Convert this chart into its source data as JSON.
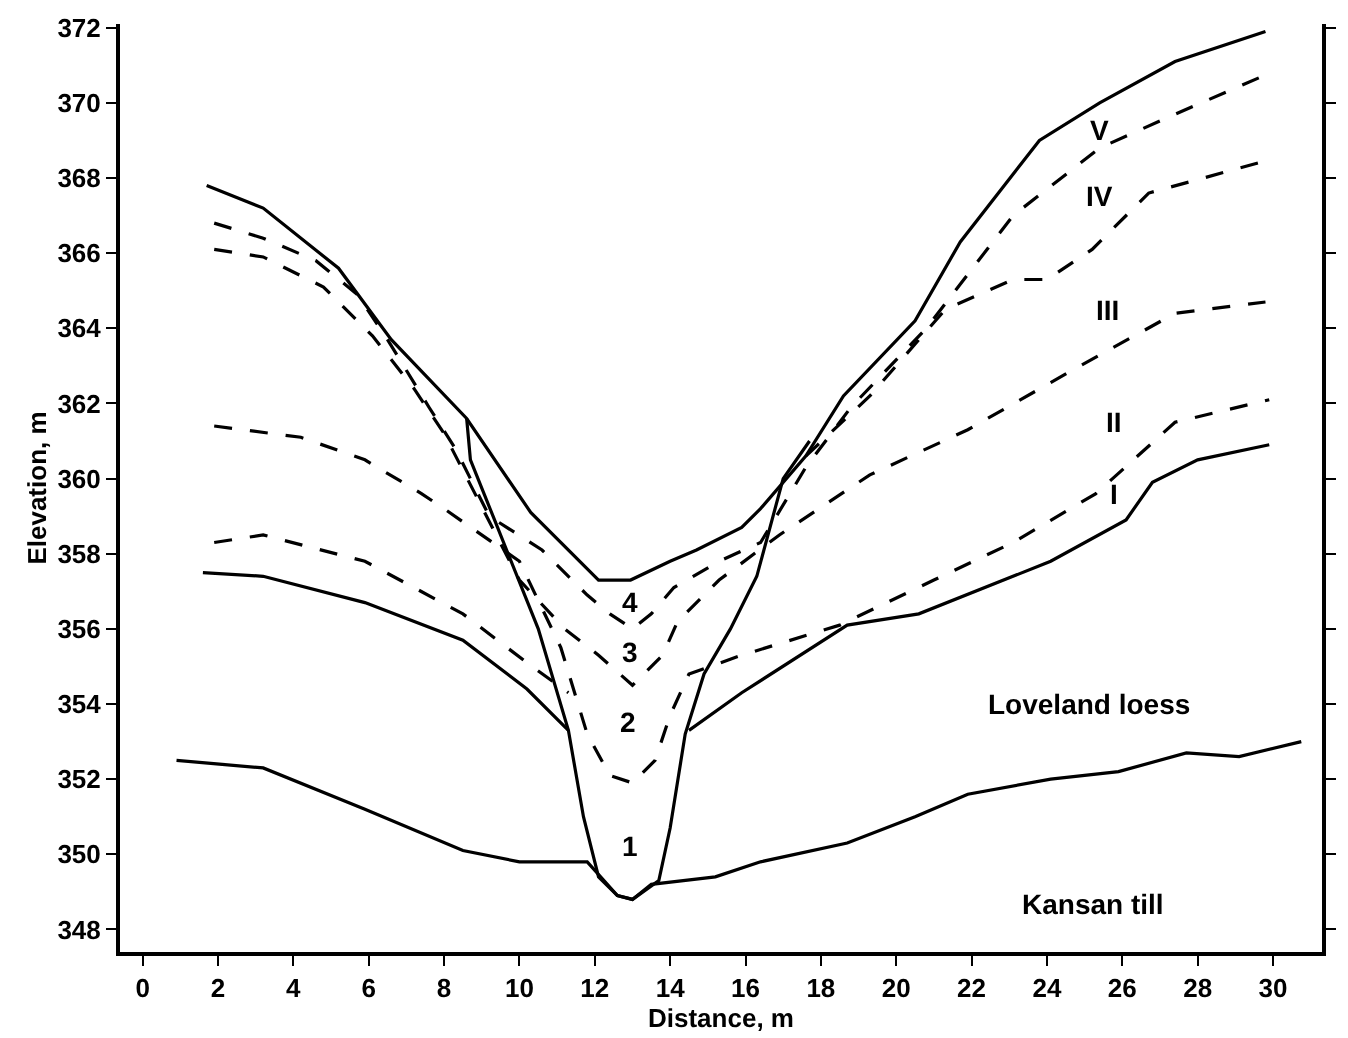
{
  "chart_data": {
    "type": "line",
    "xlabel": "Distance, m",
    "ylabel": "Elevation, m",
    "xlim": [
      -0.6,
      31.3
    ],
    "ylim": [
      347.4,
      372.1
    ],
    "xticks": [
      0,
      2,
      4,
      6,
      8,
      10,
      12,
      14,
      16,
      18,
      20,
      22,
      24,
      26,
      28,
      30
    ],
    "yticks": [
      348,
      350,
      352,
      354,
      356,
      358,
      360,
      362,
      364,
      366,
      368,
      370,
      372
    ],
    "marker": "none",
    "series": [
      {
        "color": "#000000",
        "line_style": "solid",
        "x": [
          1.7,
          3.2,
          5.2,
          6.6,
          8.6,
          10.3,
          12.1,
          12.95,
          14.0,
          14.7,
          15.9,
          16.4,
          17.6,
          18.6,
          20.5,
          21.7,
          23.8,
          25.4,
          27.4,
          29.8
        ],
        "values": [
          367.8,
          367.2,
          365.6,
          363.7,
          361.6,
          359.1,
          357.3,
          357.3,
          357.8,
          358.1,
          358.7,
          359.2,
          360.6,
          362.2,
          364.2,
          366.3,
          369.0,
          370.0,
          371.1,
          371.9
        ]
      },
      {
        "color": "#000000",
        "line_style": "solid",
        "x": [
          8.6,
          8.7,
          9.3,
          10.5,
          11.3,
          11.7,
          12.1,
          12.6,
          13.0,
          13.7,
          14.0,
          14.4,
          14.9,
          15.6,
          16.3,
          17.0,
          17.7
        ],
        "values": [
          361.6,
          360.5,
          359.0,
          356.0,
          353.3,
          351.0,
          349.4,
          348.9,
          348.8,
          349.3,
          350.7,
          353.2,
          354.8,
          356.0,
          357.4,
          360.0,
          361.0
        ]
      },
      {
        "color": "#000000",
        "line_style": "solid",
        "x": [
          1.6,
          3.2,
          5.9,
          8.5,
          10.2,
          11.3,
          null,
          14.5,
          15.9,
          18.7,
          20.6,
          24.1,
          26.1,
          26.8,
          28.0,
          29.9
        ],
        "values": [
          357.5,
          357.4,
          356.7,
          355.7,
          354.4,
          353.3,
          null,
          353.3,
          354.3,
          356.1,
          356.4,
          357.8,
          358.9,
          359.9,
          360.5,
          360.9
        ]
      },
      {
        "color": "#000000",
        "line_style": "solid",
        "x": [
          0.9,
          3.2,
          5.9,
          8.5,
          10.0,
          11.8,
          12.6,
          13.0,
          13.5,
          15.2,
          16.4,
          18.7,
          20.5,
          21.9,
          24.1,
          25.9,
          27.7,
          29.1,
          30.75
        ],
        "values": [
          352.5,
          352.3,
          351.2,
          350.1,
          349.8,
          349.8,
          348.9,
          348.8,
          349.2,
          349.4,
          349.8,
          350.3,
          351.0,
          351.6,
          352.0,
          352.2,
          352.7,
          352.6,
          353.0
        ]
      },
      {
        "color": "#000000",
        "line_style": "dashed",
        "x": [
          1.9,
          3.2,
          4.6,
          5.7,
          6.5,
          7.6,
          8.3,
          9.2,
          10.6,
          11.8,
          12.4,
          13.0,
          13.5,
          14.1,
          15.3,
          16.4,
          17.6,
          18.8,
          20.8,
          23.1,
          25.4,
          27.4,
          29.7
        ],
        "values": [
          366.8,
          366.4,
          365.8,
          364.9,
          363.7,
          361.9,
          360.8,
          359.0,
          358.1,
          356.9,
          356.4,
          356.0,
          356.4,
          357.1,
          357.8,
          358.3,
          360.3,
          361.9,
          364.0,
          367.0,
          368.8,
          369.7,
          370.7
        ]
      },
      {
        "color": "#000000",
        "line_style": "dashed",
        "x": [
          1.9,
          3.2,
          4.8,
          6.1,
          7.2,
          8.0,
          10.0,
          11.2,
          12.1,
          13.0,
          13.8,
          14.2,
          15.3,
          16.9,
          19.3,
          21.9,
          24.7,
          27.4,
          29.8
        ],
        "values": [
          366.1,
          365.9,
          365.1,
          363.8,
          362.4,
          361.2,
          357.3,
          356.0,
          355.3,
          354.5,
          355.3,
          356.2,
          357.3,
          358.5,
          360.1,
          361.3,
          362.9,
          364.4,
          364.7
        ]
      },
      {
        "color": "#000000",
        "line_style": "dashed",
        "x": [
          1.9,
          4.2,
          5.9,
          7.4,
          8.0,
          10.0,
          11.1,
          11.8,
          12.4,
          13.0,
          13.6,
          14.0,
          14.5,
          15.9,
          18.5,
          21.0,
          23.1,
          25.3,
          27.4,
          29.9
        ],
        "values": [
          361.4,
          361.1,
          360.5,
          359.6,
          359.2,
          357.8,
          355.5,
          353.2,
          352.1,
          351.9,
          352.5,
          353.7,
          354.8,
          355.3,
          356.1,
          357.3,
          358.3,
          359.6,
          361.5,
          362.1
        ]
      },
      {
        "color": "#000000",
        "line_style": "dashed",
        "x": [
          1.9,
          3.2,
          5.9,
          8.5,
          10.2,
          11.3
        ],
        "values": [
          358.3,
          358.5,
          357.8,
          356.4,
          355.1,
          354.3
        ]
      },
      {
        "color": "#000000",
        "line_style": "dashed",
        "x": [
          17.6,
          19.3,
          21.3,
          23.1,
          24.0,
          25.2,
          26.7,
          29.6
        ],
        "values": [
          360.6,
          362.2,
          364.5,
          365.3,
          365.3,
          366.1,
          367.6,
          368.4
        ]
      }
    ],
    "annotations": [
      "V",
      "IV",
      "III",
      "II",
      "I",
      "4",
      "3",
      "2",
      "1",
      "Loveland loess",
      "Kansan till"
    ]
  }
}
